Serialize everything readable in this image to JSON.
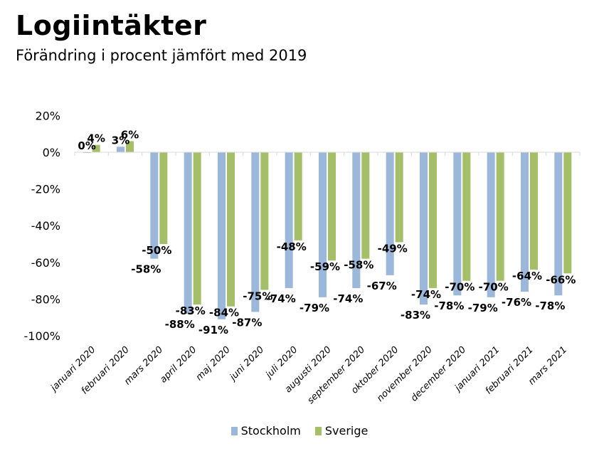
{
  "header": {
    "title": "Logiintäkter",
    "subtitle": "Förändring i procent jämfört med 2019"
  },
  "chart_data": {
    "type": "bar",
    "title": "Logiintäkter",
    "subtitle": "Förändring i procent jämfört med 2019",
    "xlabel": "",
    "ylabel": "",
    "ylim": [
      -100,
      20
    ],
    "yticks": [
      "20%",
      "0%",
      "-20%",
      "-40%",
      "-60%",
      "-80%",
      "-100%"
    ],
    "ytick_values": [
      20,
      0,
      -20,
      -40,
      -60,
      -80,
      -100
    ],
    "grid": false,
    "legend_position": "bottom",
    "categories": [
      "januari 2020",
      "februari 2020",
      "mars 2020",
      "april 2020",
      "maj 2020",
      "juni 2020",
      "juli 2020",
      "augusti 2020",
      "september 2020",
      "oktober 2020",
      "november 2020",
      "december 2020",
      "januari 2021",
      "februari 2021",
      "mars 2021"
    ],
    "series": [
      {
        "name": "Stockholm",
        "color": "#9BB7D9",
        "values": [
          0,
          3,
          -58,
          -88,
          -91,
          -87,
          -74,
          -79,
          -74,
          -67,
          -83,
          -78,
          -79,
          -76,
          -78
        ],
        "labels": [
          "0%",
          "3%",
          "-58%",
          "-88%",
          "-91%",
          "-87%",
          "-74%",
          "-79%",
          "-74%",
          "-67%",
          "-83%",
          "-78%",
          "-79%",
          "-76%",
          "-78%"
        ]
      },
      {
        "name": "Sverige",
        "color": "#A5BF69",
        "values": [
          4,
          6,
          -50,
          -83,
          -84,
          -75,
          -48,
          -59,
          -58,
          -49,
          -74,
          -70,
          -70,
          -64,
          -66
        ],
        "labels": [
          "4%",
          "6%",
          "-50%",
          "-83%",
          "-84%",
          "-75%",
          "-48%",
          "-59%",
          "-58%",
          "-49%",
          "-74%",
          "-70%",
          "-70%",
          "-64%",
          "-66%"
        ]
      }
    ]
  },
  "legend": {
    "items": [
      {
        "label": "Stockholm",
        "color": "#9BB7D9"
      },
      {
        "label": "Sverige",
        "color": "#A5BF69"
      }
    ]
  }
}
